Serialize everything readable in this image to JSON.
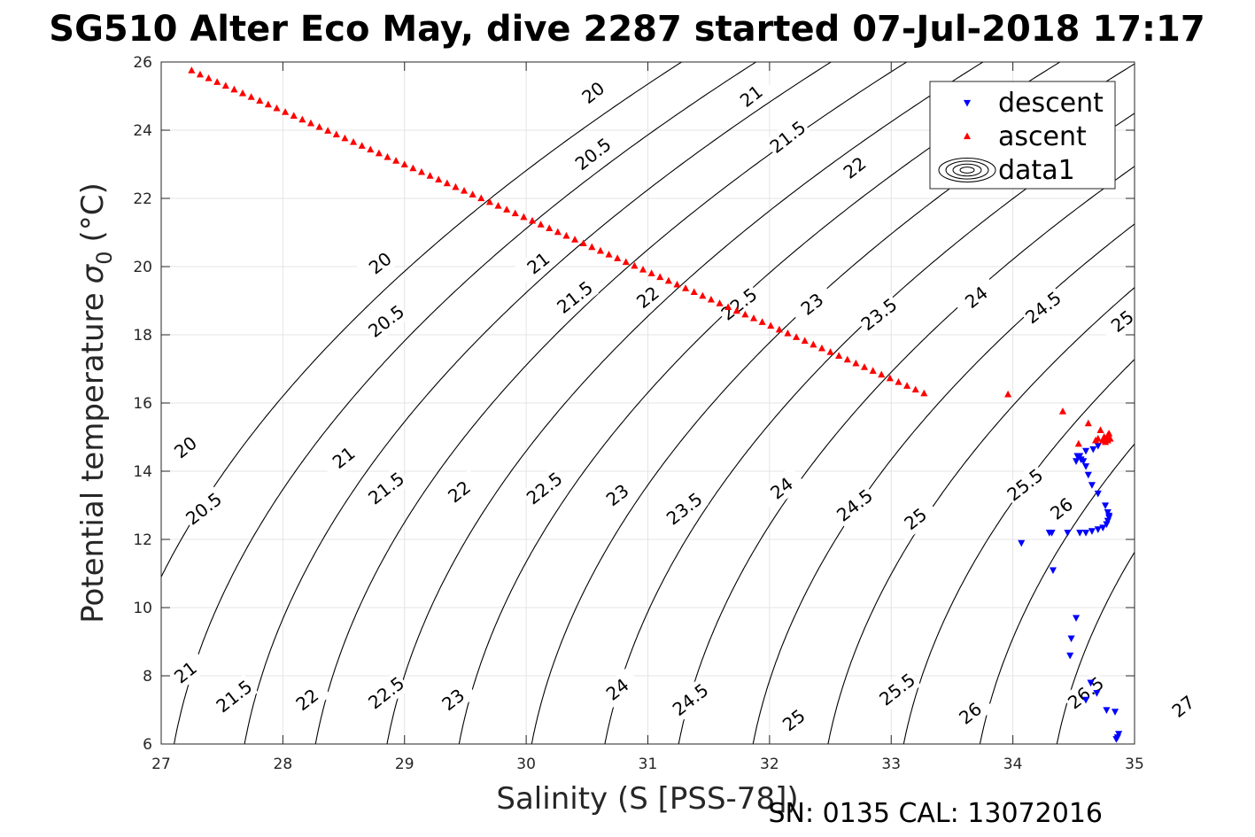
{
  "chart_data": {
    "type": "scatter",
    "title": "SG510 Alter Eco May, dive 2287 started 07-Jul-2018 17:17",
    "xlabel": "Salinity (S [PSS-78])",
    "ylabel": "Potential temperature",
    "ylabel_symbol": "σ",
    "ylabel_subscript": "0",
    "ylabel_unit": "(°C)",
    "footer": "SN: 0135  CAL: 13072016",
    "xlim": [
      27,
      35
    ],
    "ylim": [
      6,
      26
    ],
    "xticks": [
      "27",
      "28",
      "29",
      "30",
      "31",
      "32",
      "33",
      "34",
      "35"
    ],
    "yticks": [
      "6",
      "8",
      "10",
      "12",
      "14",
      "16",
      "18",
      "20",
      "22",
      "24",
      "26"
    ],
    "grid": true,
    "legend_position": "top-right",
    "legend": [
      {
        "label": "descent",
        "marker": "triangle-down",
        "color": "#0000ff"
      },
      {
        "label": "ascent",
        "marker": "triangle-up",
        "color": "#ff0000"
      },
      {
        "label": "data1",
        "marker": "contour",
        "color": "#000000"
      }
    ],
    "contours": {
      "levels": [
        20,
        20.5,
        21,
        21.5,
        22,
        22.5,
        23,
        23.5,
        24,
        24.5,
        25,
        25.5,
        26,
        26.5,
        27
      ],
      "labels": [
        {
          "text": "20",
          "s": 29.8,
          "t": 8.4
        },
        {
          "text": "20.5",
          "s": 30.5,
          "t": 7.2
        },
        {
          "text": "21",
          "s": 31.9,
          "t": 5.2
        },
        {
          "text": "21.5",
          "s": 32.15,
          "t": 4.2
        },
        {
          "text": "22",
          "s": 32.7,
          "t": 3.0
        },
        {
          "text": "20",
          "s": 28.7,
          "t": 2.7
        },
        {
          "text": "20.5",
          "s": 28.85,
          "t": 0.8
        },
        {
          "text": "21",
          "s": 29.1,
          "t": -0.4
        },
        {
          "text": "21.5",
          "s": 29.4,
          "t": -1.7
        },
        {
          "text": "22",
          "s": 30.0,
          "t": -3.1
        },
        {
          "text": "22.5",
          "s": 30.7,
          "t": -3.5
        },
        {
          "text": "23",
          "s": 31.2,
          "t": -4.1
        },
        {
          "text": "23.5",
          "s": 31.75,
          "t": -5.1
        },
        {
          "text": "24",
          "s": 32.3,
          "t": -6.1
        },
        {
          "text": "24.5",
          "s": 32.7,
          "t": -7.0
        },
        {
          "text": "25",
          "s": 33.0,
          "t": -8.0
        },
        {
          "text": "20",
          "s": 27.2,
          "t": -3.8
        },
        {
          "text": "20.5",
          "s": 27.35,
          "t": -5.6
        },
        {
          "text": "21",
          "s": 28.5,
          "t": -3.9
        },
        {
          "text": "21.5",
          "s": 28.85,
          "t": -5.0
        },
        {
          "text": "22",
          "s": 29.65,
          "t": -4.1
        },
        {
          "text": "22.5",
          "s": 30.3,
          "t": -3.4
        },
        {
          "text": "23",
          "s": 30.9,
          "t": -3.4
        },
        {
          "text": "23.5",
          "s": 31.45,
          "t": -3.9
        },
        {
          "text": "24",
          "s": 32.0,
          "t": -4.1
        },
        {
          "text": "24.5",
          "s": 32.45,
          "t": -4.7
        },
        {
          "text": "25",
          "s": 33.5,
          "t": -4.1
        },
        {
          "text": "25.5",
          "s": 34.2,
          "t": -3.9
        },
        {
          "text": "26",
          "s": 34.55,
          "t": -4.1
        },
        {
          "text": "21",
          "s": 27.5,
          "t": -5.2
        },
        {
          "text": "21.5",
          "s": 27.7,
          "t": -5.6
        },
        {
          "text": "22",
          "s": 27.85,
          "t": -6.1
        },
        {
          "text": "22.5",
          "s": 28.2,
          "t": -6.4
        },
        {
          "text": "23",
          "s": 28.6,
          "t": -6.9
        },
        {
          "text": "24",
          "s": 29.8,
          "t": -6.3
        },
        {
          "text": "24.5",
          "s": 30.4,
          "t": -6.6
        },
        {
          "text": "25",
          "s": 31.1,
          "t": -7.4
        },
        {
          "text": "25.5",
          "s": 32.1,
          "t": -7.4
        },
        {
          "text": "26",
          "s": 33.15,
          "t": -7.5
        },
        {
          "text": "26.5",
          "s": 34.15,
          "t": -7.5
        },
        {
          "text": "27",
          "s": 34.95,
          "t": -7.7
        }
      ]
    },
    "series": [
      {
        "name": "descent",
        "marker": "triangle-down",
        "color": "#0000ff",
        "x": [
          34.85,
          34.86,
          34.87,
          34.84,
          34.77,
          34.69,
          34.64,
          34.6,
          34.52,
          34.48,
          34.47,
          34.33,
          34.3,
          34.07,
          34.32,
          34.45,
          34.55,
          34.6,
          34.65,
          34.7,
          34.74,
          34.77,
          34.78,
          34.79,
          34.79,
          34.78,
          34.76,
          34.7,
          34.65,
          34.62,
          34.6,
          34.58,
          34.56,
          34.53,
          34.52,
          34.55,
          34.6,
          34.66,
          34.7
        ],
        "y": [
          6.15,
          6.2,
          6.3,
          6.95,
          7.0,
          7.5,
          7.8,
          7.3,
          9.7,
          9.1,
          8.6,
          11.1,
          12.2,
          11.9,
          12.2,
          12.2,
          12.2,
          12.2,
          12.25,
          12.3,
          12.35,
          12.45,
          12.55,
          12.65,
          12.7,
          12.8,
          13.0,
          13.35,
          13.6,
          13.9,
          14.15,
          14.3,
          14.35,
          14.45,
          14.3,
          14.45,
          14.6,
          14.65,
          14.75
        ]
      },
      {
        "name": "ascent",
        "marker": "triangle-up",
        "color": "#ff0000",
        "x": [
          27.25,
          27.32,
          27.39,
          27.46,
          27.53,
          27.6,
          27.67,
          27.74,
          27.81,
          27.88,
          27.95,
          28.02,
          28.09,
          28.16,
          28.23,
          28.3,
          28.37,
          28.44,
          28.51,
          28.58,
          28.65,
          28.72,
          28.79,
          28.86,
          28.93,
          29.0,
          29.07,
          29.14,
          29.21,
          29.28,
          29.35,
          29.42,
          29.49,
          29.56,
          29.63,
          29.7,
          29.77,
          29.84,
          29.91,
          29.98,
          30.05,
          30.12,
          30.19,
          30.26,
          30.33,
          30.4,
          30.47,
          30.54,
          30.61,
          30.68,
          30.75,
          30.82,
          30.89,
          30.96,
          31.03,
          31.1,
          31.17,
          31.24,
          31.31,
          31.38,
          31.45,
          31.52,
          31.59,
          31.66,
          31.73,
          31.8,
          31.87,
          31.94,
          32.01,
          32.08,
          32.15,
          32.22,
          32.29,
          32.36,
          32.43,
          32.5,
          32.57,
          32.64,
          32.71,
          32.78,
          32.85,
          32.92,
          32.99,
          33.06,
          33.13,
          33.2,
          33.27,
          33.96,
          34.41,
          34.54,
          34.62,
          34.68,
          34.72,
          34.75,
          34.77,
          34.78,
          34.79,
          34.8,
          34.78,
          34.76,
          34.74,
          34.7
        ],
        "y": [
          25.75,
          25.63,
          25.52,
          25.41,
          25.3,
          25.19,
          25.08,
          24.97,
          24.86,
          24.75,
          24.64,
          24.53,
          24.42,
          24.31,
          24.2,
          24.09,
          23.98,
          23.87,
          23.76,
          23.65,
          23.54,
          23.43,
          23.32,
          23.21,
          23.1,
          22.99,
          22.88,
          22.77,
          22.66,
          22.55,
          22.44,
          22.33,
          22.22,
          22.11,
          22.0,
          21.89,
          21.78,
          21.67,
          21.56,
          21.45,
          21.34,
          21.23,
          21.12,
          21.01,
          20.9,
          20.79,
          20.68,
          20.57,
          20.46,
          20.35,
          20.24,
          20.13,
          20.02,
          19.91,
          19.8,
          19.69,
          19.58,
          19.47,
          19.36,
          19.25,
          19.14,
          19.03,
          18.92,
          18.81,
          18.7,
          18.59,
          18.48,
          18.37,
          18.26,
          18.15,
          18.04,
          17.93,
          17.82,
          17.71,
          17.6,
          17.49,
          17.38,
          17.27,
          17.16,
          17.05,
          16.94,
          16.83,
          16.72,
          16.61,
          16.5,
          16.39,
          16.28,
          16.25,
          15.75,
          14.8,
          15.4,
          14.9,
          15.2,
          15.0,
          14.95,
          15.05,
          15.1,
          14.95,
          14.9,
          14.85,
          14.9,
          14.95
        ]
      }
    ]
  }
}
